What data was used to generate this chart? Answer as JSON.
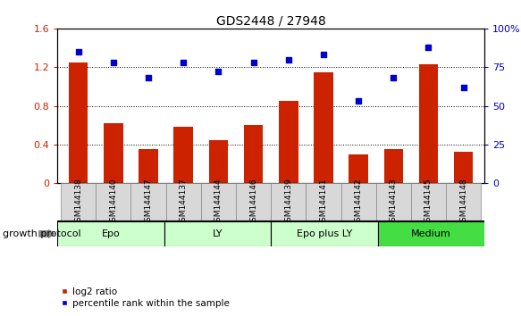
{
  "title": "GDS2448 / 27948",
  "categories": [
    "GSM144138",
    "GSM144140",
    "GSM144147",
    "GSM144137",
    "GSM144144",
    "GSM144146",
    "GSM144139",
    "GSM144141",
    "GSM144142",
    "GSM144143",
    "GSM144145",
    "GSM144148"
  ],
  "log2_ratio": [
    1.25,
    0.62,
    0.35,
    0.58,
    0.45,
    0.6,
    0.85,
    1.15,
    0.3,
    0.35,
    1.23,
    0.33
  ],
  "percentile_rank": [
    85,
    78,
    68,
    78,
    72,
    78,
    80,
    83,
    53,
    68,
    88,
    62
  ],
  "groups": [
    {
      "label": "Epo",
      "start": 0,
      "end": 3,
      "color": "#ccffcc"
    },
    {
      "label": "LY",
      "start": 3,
      "end": 6,
      "color": "#ccffcc"
    },
    {
      "label": "Epo plus LY",
      "start": 6,
      "end": 9,
      "color": "#ccffcc"
    },
    {
      "label": "Medium",
      "start": 9,
      "end": 12,
      "color": "#44dd44"
    }
  ],
  "bar_color": "#cc2200",
  "dot_color": "#0000cc",
  "ylim_left": [
    0,
    1.6
  ],
  "ylim_right": [
    0,
    100
  ],
  "yticks_left": [
    0,
    0.4,
    0.8,
    1.2,
    1.6
  ],
  "ytick_labels_left": [
    "0",
    "0.4",
    "0.8",
    "1.2",
    "1.6"
  ],
  "yticks_right": [
    0,
    25,
    50,
    75,
    100
  ],
  "ytick_labels_right": [
    "0",
    "25",
    "50",
    "75",
    "100%"
  ],
  "legend_log2": "log2 ratio",
  "legend_pct": "percentile rank within the sample",
  "group_label": "growth protocol"
}
